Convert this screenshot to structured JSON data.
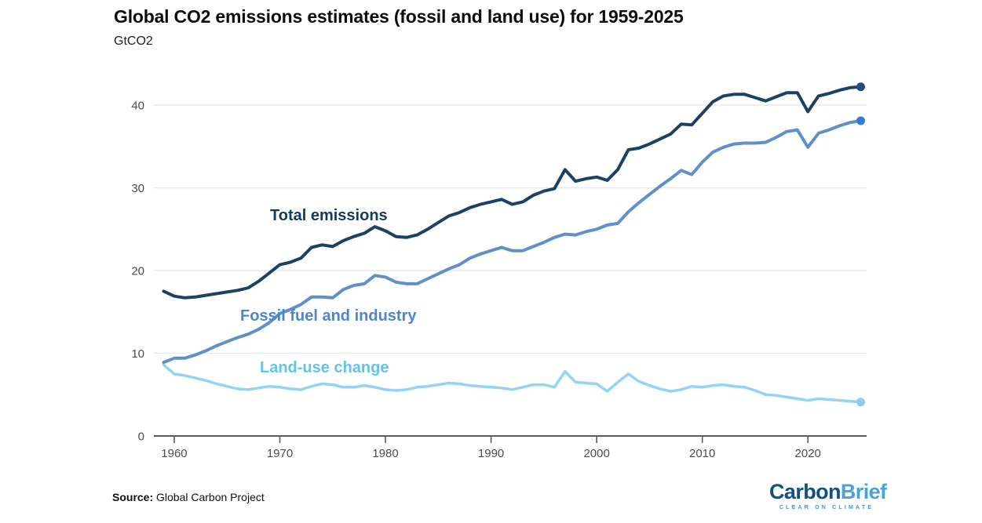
{
  "header": {
    "title": "Global CO2 emissions estimates (fossil and land use) for 1959-2025",
    "subtitle": "GtCO2"
  },
  "chart_data": {
    "type": "line",
    "title": "Global CO2 emissions estimates (fossil and land use) for 1959-2025",
    "ylabel": "GtCO2",
    "xlabel": "",
    "grid": "horizontal-only",
    "legend_position": "inline-labels-on-chart",
    "xlim": [
      1959,
      2025
    ],
    "ylim": [
      0,
      44
    ],
    "x_ticks": [
      1960,
      1970,
      1980,
      1990,
      2000,
      2010,
      2020
    ],
    "y_ticks": [
      0,
      10,
      20,
      30,
      40
    ],
    "years": [
      1959,
      1960,
      1961,
      1962,
      1963,
      1964,
      1965,
      1966,
      1967,
      1968,
      1969,
      1970,
      1971,
      1972,
      1973,
      1974,
      1975,
      1976,
      1977,
      1978,
      1979,
      1980,
      1981,
      1982,
      1983,
      1984,
      1985,
      1986,
      1987,
      1988,
      1989,
      1990,
      1991,
      1992,
      1993,
      1994,
      1995,
      1996,
      1997,
      1998,
      1999,
      2000,
      2001,
      2002,
      2003,
      2004,
      2005,
      2006,
      2007,
      2008,
      2009,
      2010,
      2011,
      2012,
      2013,
      2014,
      2015,
      2016,
      2017,
      2018,
      2019,
      2020,
      2021,
      2022,
      2023,
      2024,
      2025
    ],
    "series": [
      {
        "name": "Total emissions",
        "color": "#1b4164",
        "label_color": "#16395f",
        "dot_color": "#1d4e7d",
        "end_dot": true,
        "values": [
          17.5,
          16.9,
          16.7,
          16.8,
          17.0,
          17.2,
          17.4,
          17.6,
          17.9,
          18.7,
          19.7,
          20.7,
          21.0,
          21.5,
          22.8,
          23.1,
          22.9,
          23.6,
          24.1,
          24.5,
          25.3,
          24.8,
          24.1,
          24.0,
          24.3,
          25.0,
          25.8,
          26.6,
          27.0,
          27.6,
          28.0,
          28.3,
          28.6,
          28.0,
          28.3,
          29.1,
          29.6,
          29.9,
          32.2,
          30.8,
          31.1,
          31.3,
          30.9,
          32.2,
          34.6,
          34.8,
          35.3,
          35.9,
          36.5,
          37.7,
          37.6,
          39.0,
          40.4,
          41.1,
          41.3,
          41.3,
          40.9,
          40.5,
          41.0,
          41.5,
          41.5,
          39.2,
          41.1,
          41.4,
          41.8,
          42.1,
          42.2
        ]
      },
      {
        "name": "Fossil fuel and industry",
        "color": "#6090c8",
        "label_color": "#4d87c9",
        "dot_color": "#2f7ed2",
        "end_dot": true,
        "values": [
          8.9,
          9.4,
          9.4,
          9.8,
          10.3,
          10.9,
          11.4,
          11.9,
          12.3,
          12.9,
          13.7,
          14.8,
          15.3,
          15.9,
          16.8,
          16.8,
          16.7,
          17.7,
          18.2,
          18.4,
          19.4,
          19.2,
          18.6,
          18.4,
          18.4,
          19.0,
          19.6,
          20.2,
          20.7,
          21.5,
          22.0,
          22.4,
          22.8,
          22.4,
          22.4,
          22.9,
          23.4,
          24.0,
          24.4,
          24.3,
          24.7,
          25.0,
          25.5,
          25.7,
          27.1,
          28.2,
          29.2,
          30.2,
          31.1,
          32.1,
          31.6,
          33.1,
          34.3,
          34.9,
          35.3,
          35.4,
          35.4,
          35.5,
          36.1,
          36.8,
          37.0,
          34.9,
          36.6,
          37.0,
          37.5,
          37.9,
          38.1
        ]
      },
      {
        "name": "Land-use change",
        "color": "#92d4f4",
        "label_color": "#64c3ee",
        "dot_color": "#89cef1",
        "end_dot": true,
        "values": [
          8.6,
          7.5,
          7.3,
          7.0,
          6.7,
          6.3,
          6.0,
          5.7,
          5.6,
          5.8,
          6.0,
          5.9,
          5.7,
          5.6,
          6.0,
          6.3,
          6.2,
          5.9,
          5.9,
          6.1,
          5.9,
          5.6,
          5.5,
          5.6,
          5.9,
          6.0,
          6.2,
          6.4,
          6.3,
          6.1,
          6.0,
          5.9,
          5.8,
          5.6,
          5.9,
          6.2,
          6.2,
          5.9,
          7.8,
          6.5,
          6.4,
          6.3,
          5.4,
          6.5,
          7.5,
          6.6,
          6.1,
          5.7,
          5.4,
          5.6,
          6.0,
          5.9,
          6.1,
          6.2,
          6.0,
          5.9,
          5.5,
          5.0,
          4.9,
          4.7,
          4.5,
          4.3,
          4.5,
          4.4,
          4.3,
          4.2,
          4.1
        ]
      }
    ],
    "style": {
      "gridline_color": "#e9e9e9",
      "axis_color": "#5a5a5a",
      "tick_label_color": "#4c4c4c"
    }
  },
  "footer": {
    "source_label": "Source:",
    "source_text": "Global Carbon Project",
    "logo": {
      "part1": "Carbon",
      "part2": "Brief",
      "tagline": "CLEAR ON CLIMATE"
    }
  }
}
